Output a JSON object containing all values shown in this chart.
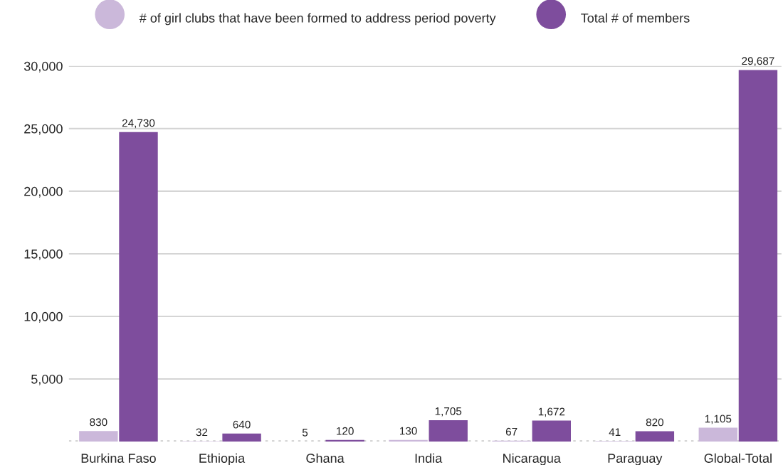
{
  "chart_data": {
    "type": "bar",
    "categories": [
      "Burkina Faso",
      "Ethiopia",
      "Ghana",
      "India",
      "Nicaragua",
      "Paraguay",
      "Global-Total"
    ],
    "series": [
      {
        "name": "# of girl clubs that have been formed to address period poverty",
        "color": "#cbb8da",
        "values": [
          830,
          32,
          5,
          130,
          67,
          41,
          1105
        ],
        "value_labels": [
          "830",
          "32",
          "5",
          "130",
          "67",
          "41",
          "1,105"
        ]
      },
      {
        "name": "Total # of members",
        "color": "#7e4d9d",
        "values": [
          24730,
          640,
          120,
          1705,
          1672,
          820,
          29687
        ],
        "value_labels": [
          "24,730",
          "640",
          "120",
          "1,705",
          "1,672",
          "820",
          "29,687"
        ]
      }
    ],
    "ylim": [
      0,
      30000
    ],
    "yticks": [
      {
        "value": 5000,
        "label": "5,000"
      },
      {
        "value": 10000,
        "label": "10,000"
      },
      {
        "value": 15000,
        "label": "15,000"
      },
      {
        "value": 20000,
        "label": "20,000"
      },
      {
        "value": 25000,
        "label": "25,000"
      },
      {
        "value": 30000,
        "label": "30,000"
      }
    ],
    "grid": "y",
    "legend": "top",
    "ref_lines": [
      {
        "axis": "y",
        "value": 0,
        "color": "#cccccc",
        "line_style": "dotted"
      }
    ]
  }
}
